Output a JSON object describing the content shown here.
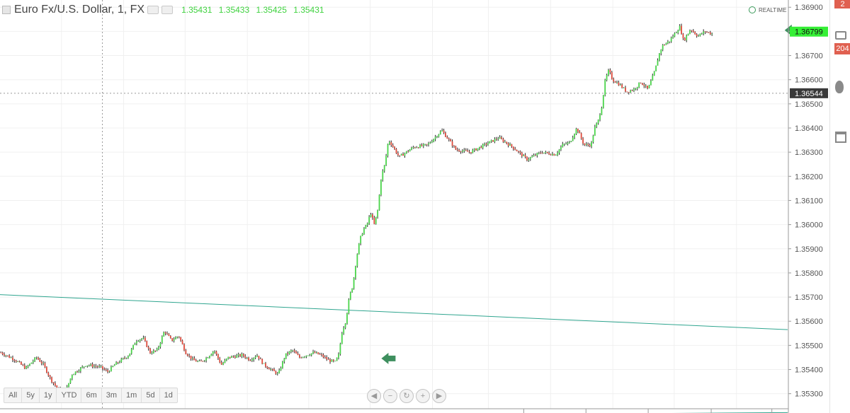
{
  "header": {
    "title": "Euro Fx/U.S. Dollar, 1, FX",
    "ohlc": "1.35431 1.35433 1.35425 1.35431",
    "realtime_label": "REALTIME"
  },
  "range_buttons": [
    "All",
    "5y",
    "1y",
    "YTD",
    "6m",
    "3m",
    "1m",
    "5d",
    "1d"
  ],
  "nav_buttons": [
    "◀",
    "−",
    "↻",
    "+",
    "▶"
  ],
  "sidebar": {
    "badge_top": "2",
    "badge_count": "204"
  },
  "colors": {
    "up": "#4ad44a",
    "down": "#e04a3c",
    "wick": "#222222",
    "trendline": "#2fa58f",
    "arrow": "#3e8f5e",
    "price_tag": "#35ef35"
  },
  "chart_data": {
    "type": "candlestick",
    "title": "Euro Fx/U.S. Dollar, 1, FX",
    "y_axis": {
      "ticks": [
        "1.36900",
        "1.36800",
        "1.36700",
        "1.36600",
        "1.36500",
        "1.36400",
        "1.36300",
        "1.36200",
        "1.36100",
        "1.36000",
        "1.35900",
        "1.35800",
        "1.35700",
        "1.35600",
        "1.35500",
        "1.35400",
        "1.35300"
      ],
      "range": [
        1.3522,
        1.3693
      ]
    },
    "price_labels": [
      {
        "label": "1.36799",
        "value": 1.36799,
        "style": "current"
      },
      {
        "label": "1.36544",
        "value": 1.36544,
        "style": "crosshair"
      }
    ],
    "trendlines": [
      {
        "x": [
          0,
          1
        ],
        "y": [
          1.3571,
          1.35565
        ]
      },
      {
        "x": [
          0.83,
          1
        ],
        "y": [
          1.35218,
          1.35222
        ]
      }
    ],
    "arrows": [
      {
        "x": 0.468,
        "y": 1.35446
      },
      {
        "x": 0.98,
        "y": 1.36805
      }
    ],
    "crosshair": {
      "x": 0.13,
      "y": 1.36544
    },
    "series_path": [
      [
        0.0,
        1.3547
      ],
      [
        0.02,
        1.3544
      ],
      [
        0.035,
        1.35405
      ],
      [
        0.05,
        1.3545
      ],
      [
        0.06,
        1.3542
      ],
      [
        0.07,
        1.3536
      ],
      [
        0.08,
        1.3532
      ],
      [
        0.09,
        1.353
      ],
      [
        0.1,
        1.3538
      ],
      [
        0.12,
        1.3542
      ],
      [
        0.14,
        1.3541
      ],
      [
        0.15,
        1.3539
      ],
      [
        0.16,
        1.3542
      ],
      [
        0.18,
        1.3546
      ],
      [
        0.19,
        1.3552
      ],
      [
        0.2,
        1.3553
      ],
      [
        0.21,
        1.3547
      ],
      [
        0.22,
        1.3548
      ],
      [
        0.23,
        1.3556
      ],
      [
        0.24,
        1.3552
      ],
      [
        0.25,
        1.3554
      ],
      [
        0.26,
        1.3547
      ],
      [
        0.27,
        1.3544
      ],
      [
        0.28,
        1.3543
      ],
      [
        0.29,
        1.3545
      ],
      [
        0.3,
        1.3548
      ],
      [
        0.31,
        1.3542
      ],
      [
        0.32,
        1.3545
      ],
      [
        0.34,
        1.3546
      ],
      [
        0.35,
        1.3544
      ],
      [
        0.36,
        1.3546
      ],
      [
        0.37,
        1.3542
      ],
      [
        0.38,
        1.354
      ],
      [
        0.39,
        1.3538
      ],
      [
        0.4,
        1.3546
      ],
      [
        0.41,
        1.3548
      ],
      [
        0.42,
        1.3545
      ],
      [
        0.43,
        1.3546
      ],
      [
        0.44,
        1.3547
      ],
      [
        0.45,
        1.3546
      ],
      [
        0.46,
        1.3544
      ],
      [
        0.47,
        1.3543
      ],
      [
        0.475,
        1.3546
      ],
      [
        0.48,
        1.3556
      ],
      [
        0.485,
        1.356
      ],
      [
        0.49,
        1.357
      ],
      [
        0.495,
        1.3575
      ],
      [
        0.5,
        1.3586
      ],
      [
        0.505,
        1.3594
      ],
      [
        0.51,
        1.3598
      ],
      [
        0.515,
        1.36
      ],
      [
        0.52,
        1.3605
      ],
      [
        0.525,
        1.36
      ],
      [
        0.53,
        1.3606
      ],
      [
        0.535,
        1.362
      ],
      [
        0.54,
        1.3625
      ],
      [
        0.545,
        1.3635
      ],
      [
        0.55,
        1.3633
      ],
      [
        0.56,
        1.3628
      ],
      [
        0.58,
        1.3632
      ],
      [
        0.6,
        1.3633
      ],
      [
        0.62,
        1.3639
      ],
      [
        0.64,
        1.3631
      ],
      [
        0.66,
        1.363
      ],
      [
        0.68,
        1.3633
      ],
      [
        0.7,
        1.3636
      ],
      [
        0.72,
        1.3632
      ],
      [
        0.74,
        1.3627
      ],
      [
        0.76,
        1.363
      ],
      [
        0.78,
        1.3629
      ],
      [
        0.79,
        1.3633
      ],
      [
        0.8,
        1.3634
      ],
      [
        0.81,
        1.364
      ],
      [
        0.82,
        1.3633
      ],
      [
        0.83,
        1.3633
      ],
      [
        0.835,
        1.364
      ],
      [
        0.84,
        1.3643
      ],
      [
        0.845,
        1.3649
      ],
      [
        0.85,
        1.366
      ],
      [
        0.855,
        1.3664
      ],
      [
        0.86,
        1.366
      ],
      [
        0.87,
        1.3658
      ],
      [
        0.88,
        1.3655
      ],
      [
        0.89,
        1.3656
      ],
      [
        0.9,
        1.3659
      ],
      [
        0.91,
        1.3656
      ],
      [
        0.92,
        1.3664
      ],
      [
        0.925,
        1.367
      ],
      [
        0.93,
        1.3674
      ],
      [
        0.94,
        1.3676
      ],
      [
        0.95,
        1.368
      ],
      [
        0.955,
        1.3682
      ],
      [
        0.96,
        1.3676
      ],
      [
        0.97,
        1.3681
      ],
      [
        0.98,
        1.3678
      ],
      [
        0.99,
        1.368
      ],
      [
        1.0,
        1.3679
      ]
    ]
  }
}
